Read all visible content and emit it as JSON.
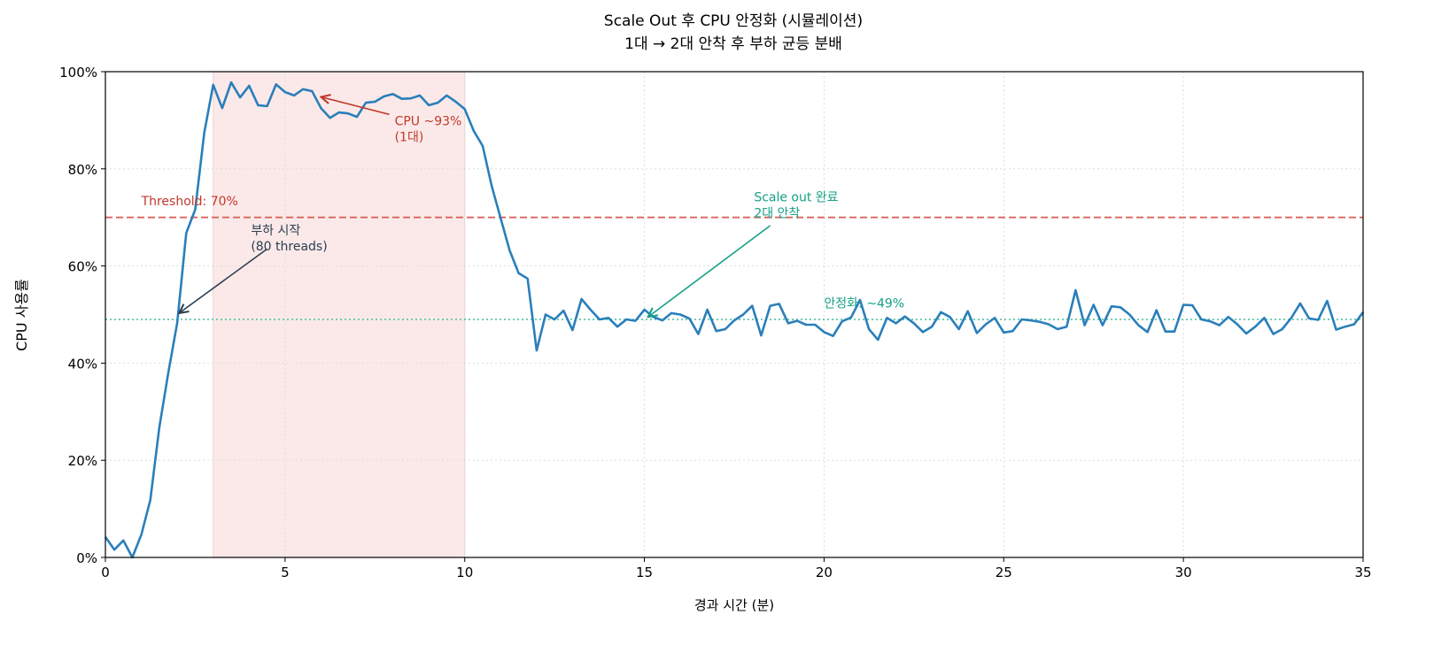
{
  "chart_data": {
    "type": "line",
    "title": "Scale Out 후 CPU 안정화 (시뮬레이션)",
    "subtitle": "1대 → 2대 안착 후 부하 균등 분배",
    "xlabel": "경과 시간 (분)",
    "ylabel": "CPU 사용률",
    "xlim": [
      0,
      35
    ],
    "ylim": [
      0,
      100
    ],
    "x_step": 0.25,
    "xticks": [
      "0",
      "5",
      "10",
      "15",
      "20",
      "25",
      "30",
      "35"
    ],
    "xtick_values": [
      0,
      5,
      10,
      15,
      20,
      25,
      30,
      35
    ],
    "yticks": [
      "0%",
      "20%",
      "40%",
      "60%",
      "80%",
      "100%"
    ],
    "ytick_values": [
      0,
      20,
      40,
      60,
      80,
      100
    ],
    "grid": true,
    "colors": {
      "line": "#2a7fba",
      "threshold": "#d9645c",
      "stable": "#5cc7a8",
      "shade": "#fbe9e9",
      "red_text": "#c0392b",
      "green_text": "#16a085",
      "dark_text": "#2c3e50"
    },
    "shaded_region": [
      3,
      10
    ],
    "threshold": {
      "value": 70,
      "label": "Threshold: 70%",
      "label_x": 1,
      "label_y": 72.5
    },
    "stable_line": {
      "value": 49,
      "label": "안정화: ~49%",
      "label_x": 20,
      "label_y": 51.5
    },
    "annotations": [
      {
        "lines": [
          "부하 시작",
          "(80 threads)"
        ],
        "text_x": 4.05,
        "text_y": 66.5,
        "arrow_from": [
          4.5,
          63.5
        ],
        "arrow_to": [
          2.05,
          50.3
        ],
        "color": "dark_text"
      },
      {
        "lines": [
          "CPU ~93%",
          "(1대)"
        ],
        "text_x": 8.05,
        "text_y": 89,
        "arrow_from": [
          7.9,
          91.2
        ],
        "arrow_to": [
          6.0,
          94.8
        ],
        "color": "red_text"
      },
      {
        "lines": [
          "Scale out 완료",
          "2대 안착"
        ],
        "text_x": 18.05,
        "text_y": 73.3,
        "arrow_from": [
          18.5,
          68.3
        ],
        "arrow_to": [
          15.1,
          49.5
        ],
        "color": "green_text"
      }
    ],
    "series": [
      {
        "values": [
          4.2,
          1.6,
          3.5,
          0,
          4.7,
          11.8,
          26.8,
          38,
          48.3,
          66.8,
          71.6,
          87.4,
          97.3,
          92.5,
          97.8,
          94.7,
          97.1,
          93.1,
          92.9,
          97.4,
          95.8,
          95.1,
          96.4,
          96,
          92.5,
          90.5,
          91.6,
          91.4,
          90.7,
          93.6,
          93.8,
          94.9,
          95.4,
          94.4,
          94.5,
          95.1,
          93.1,
          93.6,
          95.1,
          93.8,
          92.3,
          87.8,
          84.7,
          76.5,
          69.8,
          63.2,
          58.5,
          57.4,
          42.6,
          50,
          49,
          50.8,
          46.8,
          53.2,
          51,
          49,
          49.3,
          47.5,
          49,
          48.7,
          51,
          49.5,
          48.8,
          50.3,
          50,
          49.2,
          46,
          51,
          46.6,
          47,
          48.8,
          50,
          51.8,
          45.7,
          51.8,
          52.2,
          48.2,
          48.7,
          47.9,
          47.9,
          46.4,
          45.6,
          48.6,
          49.4,
          53,
          47,
          44.8,
          49.3,
          48.2,
          49.6,
          48.2,
          46.4,
          47.5,
          50.5,
          49.5,
          47,
          50.7,
          46.2,
          48,
          49.3,
          46.3,
          46.6,
          49,
          48.8,
          48.5,
          48,
          47,
          47.5,
          55,
          47.8,
          52,
          47.8,
          51.7,
          51.5,
          50,
          47.8,
          46.4,
          50.9,
          46.5,
          46.5,
          52,
          51.9,
          49,
          48.6,
          47.8,
          49.5,
          48,
          46.1,
          47.5,
          49.3,
          46,
          47,
          49.3,
          52.3,
          49.2,
          48.9,
          52.8,
          46.9,
          47.5,
          48,
          50.5
        ]
      }
    ]
  }
}
